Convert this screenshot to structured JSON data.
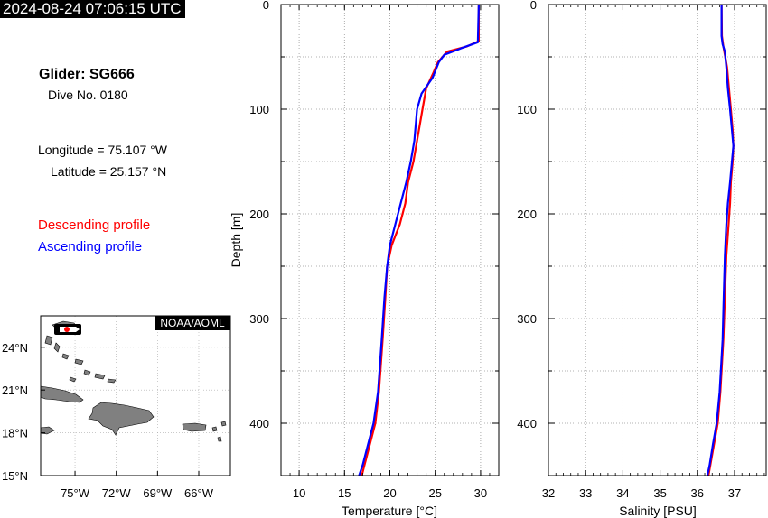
{
  "header": {
    "timestamp": "2024-08-24 07:06:15 UTC"
  },
  "info": {
    "glider": "Glider: SG666",
    "dive": "Dive No. 0180",
    "longitude": "Longitude = 75.107 °W",
    "latitude": "Latitude = 25.157 °N"
  },
  "legend": {
    "descending": "Descending profile",
    "ascending": "Ascending profile"
  },
  "colors": {
    "descending": "#ff0000",
    "ascending": "#0000ff",
    "land": "#808080"
  },
  "map": {
    "credit": "NOAA/AOML",
    "lat_labels": [
      "24°N",
      "21°N",
      "18°N",
      "15°N"
    ],
    "lat_values": [
      24,
      21,
      18,
      15
    ],
    "lon_labels": [
      "75°W",
      "72°W",
      "69°W",
      "66°W"
    ],
    "lon_values": [
      -75,
      -72,
      -69,
      -66
    ],
    "lon_range": [
      -77.5,
      -63.7
    ],
    "lat_range": [
      15,
      26.2
    ],
    "glider_position": {
      "lon": -75.107,
      "lat": 25.157
    }
  },
  "chart_data": [
    {
      "type": "line",
      "xlabel": "Temperature [°C]",
      "ylabel": "Depth [m]",
      "xlim": [
        8,
        32
      ],
      "ylim": [
        450,
        0
      ],
      "xticks": [
        10,
        15,
        20,
        25,
        30
      ],
      "yticks": [
        0,
        100,
        200,
        300,
        400
      ],
      "grid": true,
      "series": [
        {
          "color": "#ff0000",
          "points": [
            [
              29.8,
              0
            ],
            [
              29.8,
              35
            ],
            [
              28.5,
              40
            ],
            [
              26.3,
              45
            ],
            [
              25.3,
              55
            ],
            [
              24.8,
              65
            ],
            [
              24.0,
              80
            ],
            [
              23.6,
              100
            ],
            [
              23.0,
              130
            ],
            [
              22.6,
              150
            ],
            [
              22.0,
              170
            ],
            [
              21.7,
              190
            ],
            [
              21.1,
              210
            ],
            [
              20.2,
              230
            ],
            [
              19.7,
              250
            ],
            [
              19.5,
              280
            ],
            [
              19.2,
              320
            ],
            [
              18.8,
              370
            ],
            [
              18.4,
              400
            ],
            [
              17.8,
              420
            ],
            [
              17.2,
              440
            ],
            [
              16.9,
              450
            ]
          ]
        },
        {
          "color": "#0000ff",
          "points": [
            [
              29.8,
              0
            ],
            [
              29.7,
              36
            ],
            [
              27.8,
              42
            ],
            [
              26.0,
              48
            ],
            [
              25.4,
              55
            ],
            [
              24.7,
              70
            ],
            [
              23.5,
              85
            ],
            [
              23.0,
              100
            ],
            [
              22.7,
              130
            ],
            [
              22.3,
              150
            ],
            [
              21.8,
              170
            ],
            [
              21.2,
              190
            ],
            [
              20.6,
              210
            ],
            [
              20.0,
              230
            ],
            [
              19.7,
              250
            ],
            [
              19.4,
              280
            ],
            [
              19.1,
              320
            ],
            [
              18.7,
              370
            ],
            [
              18.2,
              400
            ],
            [
              17.6,
              420
            ],
            [
              17.0,
              440
            ],
            [
              16.6,
              450
            ]
          ]
        }
      ]
    },
    {
      "type": "line",
      "xlabel": "Salinity [PSU]",
      "ylabel": "",
      "xlim": [
        32,
        37.85
      ],
      "ylim": [
        450,
        0
      ],
      "xticks": [
        32,
        33,
        34,
        35,
        36,
        37
      ],
      "yticks": [
        0,
        100,
        200,
        300,
        400
      ],
      "grid": true,
      "series": [
        {
          "color": "#ff0000",
          "points": [
            [
              36.65,
              0
            ],
            [
              36.66,
              30
            ],
            [
              36.7,
              40
            ],
            [
              36.75,
              50
            ],
            [
              36.8,
              60
            ],
            [
              36.85,
              80
            ],
            [
              36.9,
              100
            ],
            [
              36.95,
              120
            ],
            [
              36.97,
              135
            ],
            [
              36.95,
              150
            ],
            [
              36.9,
              170
            ],
            [
              36.88,
              190
            ],
            [
              36.84,
              210
            ],
            [
              36.78,
              240
            ],
            [
              36.74,
              280
            ],
            [
              36.7,
              320
            ],
            [
              36.62,
              370
            ],
            [
              36.55,
              400
            ],
            [
              36.45,
              420
            ],
            [
              36.35,
              440
            ],
            [
              36.3,
              450
            ]
          ]
        },
        {
          "color": "#0000ff",
          "points": [
            [
              36.65,
              0
            ],
            [
              36.65,
              30
            ],
            [
              36.68,
              38
            ],
            [
              36.74,
              45
            ],
            [
              36.78,
              60
            ],
            [
              36.82,
              80
            ],
            [
              36.88,
              100
            ],
            [
              36.93,
              120
            ],
            [
              36.97,
              135
            ],
            [
              36.93,
              150
            ],
            [
              36.88,
              170
            ],
            [
              36.82,
              190
            ],
            [
              36.78,
              210
            ],
            [
              36.74,
              240
            ],
            [
              36.71,
              280
            ],
            [
              36.68,
              320
            ],
            [
              36.6,
              370
            ],
            [
              36.52,
              400
            ],
            [
              36.42,
              420
            ],
            [
              36.33,
              440
            ],
            [
              36.27,
              450
            ]
          ]
        }
      ]
    }
  ]
}
